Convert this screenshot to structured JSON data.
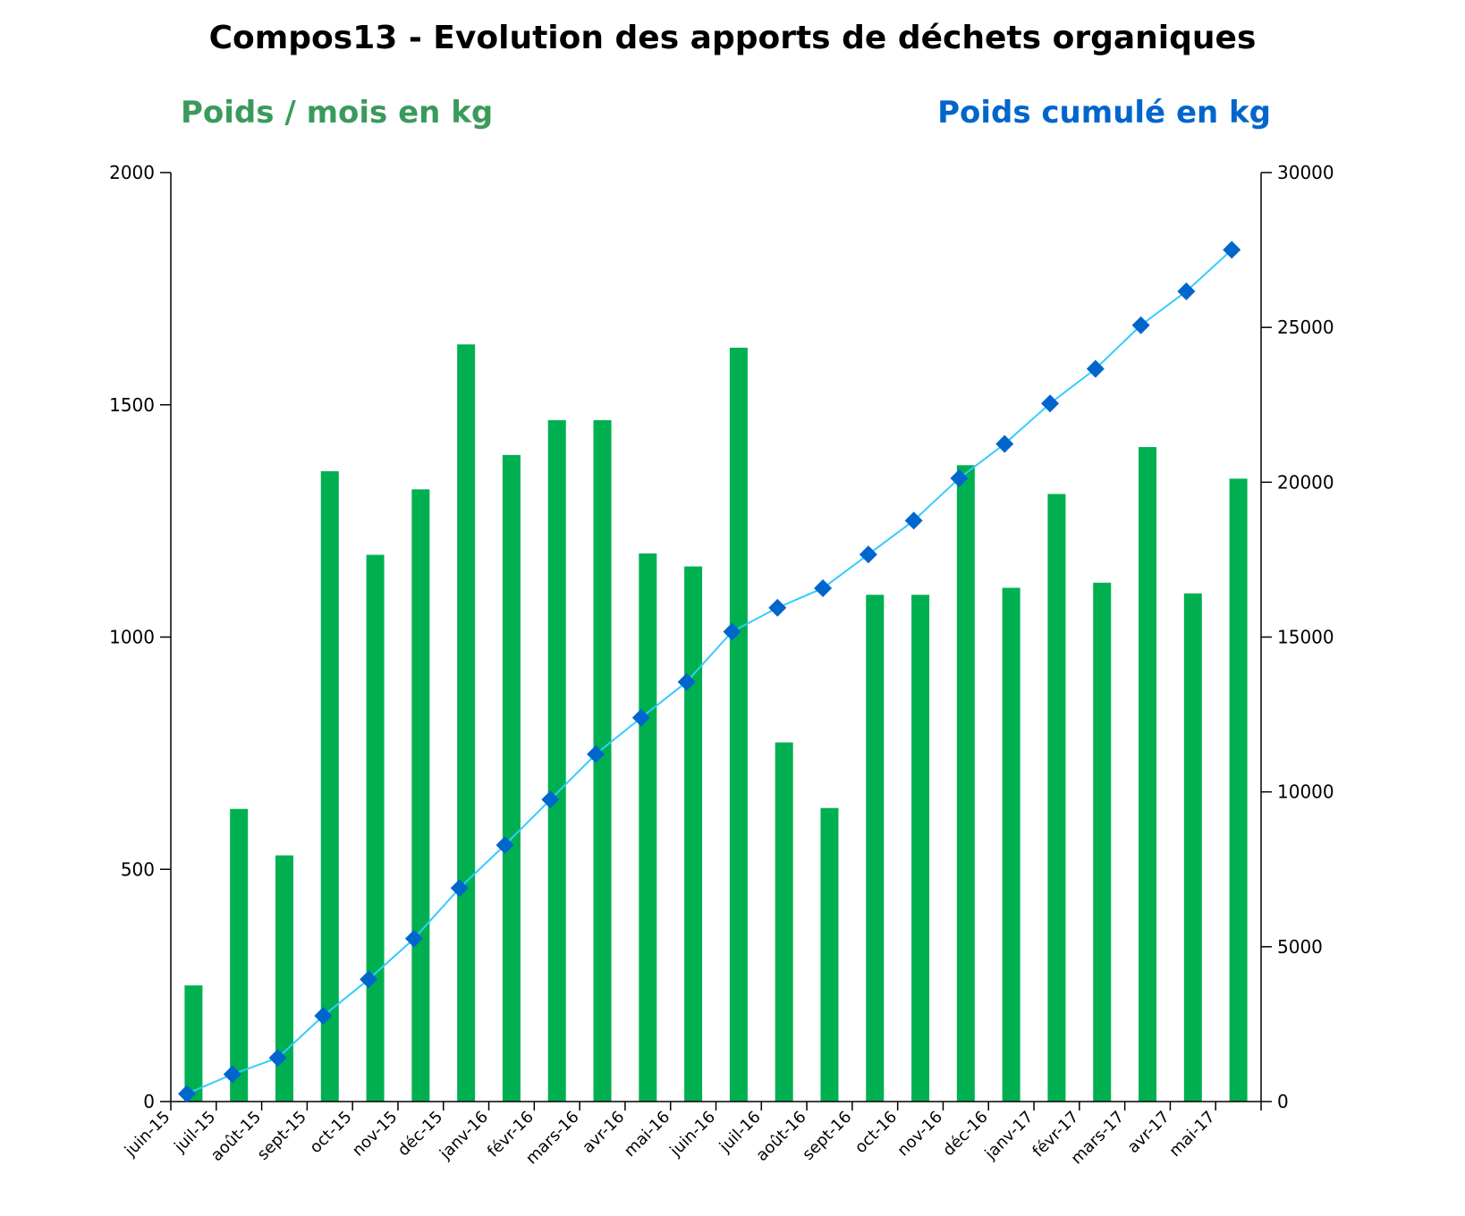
{
  "colors": {
    "bar": "#00b050",
    "line": "#33ccff",
    "marker": "#0066cc",
    "left_title": "#3a9a5c",
    "right_title": "#0066cc"
  },
  "chart_data": {
    "type": "bar",
    "title": "Compos13 - Evolution des apports de déchets organiques",
    "ylabel": "Poids / mois en kg",
    "y2label": "Poids cumulé en kg",
    "ylim": [
      0,
      2000
    ],
    "y2lim": [
      0,
      30000
    ],
    "yticks": [
      "0",
      "500",
      "1000",
      "1500",
      "2000"
    ],
    "y2ticks": [
      "0",
      "5000",
      "10000",
      "15000",
      "20000",
      "25000",
      "30000"
    ],
    "grid": false,
    "categories": [
      "juin-15",
      "juil-15",
      "août-15",
      "sept-15",
      "oct-15",
      "nov-15",
      "déc-15",
      "janv-16",
      "févr-16",
      "mars-16",
      "avr-16",
      "mai-16",
      "juin-16",
      "juil-16",
      "août-16",
      "sept-16",
      "oct-16",
      "nov-16",
      "déc-16",
      "janv-17",
      "févr-17",
      "mars-17",
      "avr-17",
      "mai-17"
    ],
    "series": [
      {
        "type": "bar",
        "axis": "left",
        "values": [
          250,
          630,
          530,
          1357,
          1177,
          1318,
          1630,
          1392,
          1467,
          1467,
          1180,
          1152,
          1623,
          773,
          632,
          1091,
          1091,
          1370,
          1106,
          1308,
          1117,
          1409,
          1094,
          1341
        ]
      },
      {
        "type": "line",
        "axis": "right",
        "values": [
          250,
          880,
          1410,
          2767,
          3944,
          5262,
          6892,
          8284,
          9751,
          11218,
          12398,
          13550,
          15173,
          15946,
          16578,
          17669,
          18760,
          20130,
          21236,
          22544,
          23661,
          25070,
          26164,
          27505
        ]
      }
    ]
  }
}
